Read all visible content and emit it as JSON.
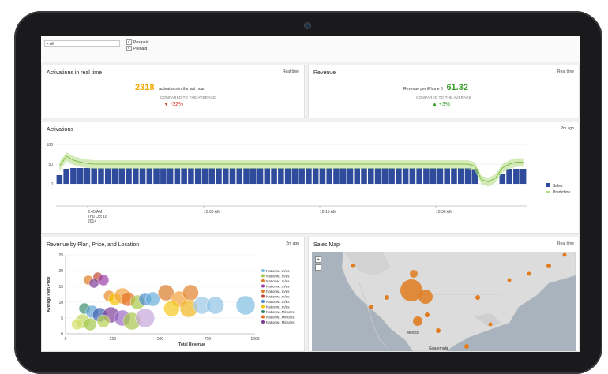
{
  "filters": {
    "select_value": "× All",
    "options": [
      {
        "label": "Postpaid",
        "checked": true
      },
      {
        "label": "Prepaid",
        "checked": true
      }
    ]
  },
  "activations_realtime": {
    "title": "Activations in real time",
    "meta": "Real time",
    "value": "2318",
    "value_label": "activations in the last hour",
    "compare_label": "COMPARED TO THE AVERAGE",
    "delta": "-32%",
    "value_color": "#f0a800",
    "delta_color": "#d9342b"
  },
  "revenue": {
    "title": "Revenue",
    "meta": "Real time",
    "value_label": "Revenue per iPhone 6",
    "value": "61.32",
    "compare_label": "COMPARED TO THE AVERAGE",
    "delta": "+3%",
    "value_color": "#3a9b2c",
    "delta_color": "#3a9b2c"
  },
  "activations_chart": {
    "title": "Activations",
    "meta": "2m ago",
    "legend": [
      "Sales",
      "Prediction"
    ],
    "y_ticks": [
      "100",
      "50",
      "0"
    ],
    "x_ticks": [
      {
        "label": "9:45 AM",
        "sub": "Thu Oct 16",
        "sub2": "2014"
      },
      {
        "label": "10:00 AM"
      },
      {
        "label": "10:15 AM"
      },
      {
        "label": "10:30 AM"
      }
    ]
  },
  "chart_data": [
    {
      "type": "bar",
      "title": "Activations",
      "ylim": [
        0,
        100
      ],
      "series": [
        {
          "name": "Sales",
          "values": [
            22,
            38,
            40,
            40,
            40,
            40,
            40,
            40,
            40,
            40,
            40,
            40,
            40,
            40,
            40,
            40,
            40,
            40,
            40,
            40,
            40,
            40,
            40,
            40,
            40,
            40,
            40,
            40,
            40,
            40,
            40,
            40,
            40,
            40,
            40,
            40,
            40,
            40,
            40,
            40,
            40,
            40,
            40,
            40,
            40,
            40,
            40,
            40,
            40,
            40,
            40,
            40,
            40,
            40,
            40,
            40,
            40,
            40,
            40,
            40,
            38,
            0,
            0,
            0,
            24,
            38,
            38,
            38
          ]
        },
        {
          "name": "Prediction",
          "values": [
            45,
            70,
            60,
            55,
            52,
            50,
            50,
            50,
            50,
            50,
            50,
            50,
            50,
            50,
            50,
            50,
            50,
            50,
            50,
            50,
            50,
            50,
            50,
            50,
            50,
            50,
            50,
            50,
            50,
            50,
            50,
            50,
            50,
            50,
            50,
            50,
            50,
            50,
            50,
            50,
            50,
            50,
            50,
            50,
            50,
            50,
            50,
            50,
            50,
            50,
            50,
            50,
            50,
            50,
            50,
            50,
            50,
            50,
            50,
            50,
            45,
            10,
            5,
            15,
            40,
            50,
            55,
            55
          ]
        }
      ]
    },
    {
      "type": "scatter",
      "title": "Revenue by Plan, Price, and Location",
      "xlabel": "Total Revenue",
      "ylabel": "Average Plan Price",
      "x_ticks": [
        "0",
        "250",
        "500",
        "750",
        "1000"
      ],
      "y_ticks": [
        "25",
        "20",
        "15",
        "10",
        "5",
        "0"
      ],
      "xlim": [
        0,
        1000
      ],
      "ylim": [
        0,
        25
      ],
      "legend": [
        "Nationw...m/es",
        "Nationw...m/es",
        "Nationw...m/es",
        "Nationw...m/es",
        "Nationw...m/es",
        "Nationw...m/es",
        "Nationw...m/es",
        "Nationw...m/es",
        "Nationw...Minutes",
        "Nationw...Minutes",
        "Nationw...Minutes"
      ],
      "series": [
        {
          "name": "",
          "points": [
            [
              120,
              17,
              6,
              "#e07b20"
            ],
            [
              170,
              18,
              6,
              "#c0442b"
            ],
            [
              200,
              17,
              7,
              "#9b3fa8"
            ],
            [
              150,
              16,
              6,
              "#7c3f97"
            ],
            [
              230,
              12,
              7,
              "#e68b25"
            ],
            [
              260,
              11,
              8,
              "#f6c400"
            ],
            [
              300,
              12,
              10,
              "#f1a440"
            ],
            [
              330,
              11,
              9,
              "#e26d1e"
            ],
            [
              380,
              10,
              9,
              "#a9c94a"
            ],
            [
              420,
              11,
              8,
              "#4c8bd3"
            ],
            [
              460,
              11,
              9,
              "#6ab0dc"
            ],
            [
              530,
              13,
              10,
              "#d97a2a"
            ],
            [
              600,
              11,
              10,
              "#f4a13a"
            ],
            [
              660,
              13,
              10,
              "#e3822b"
            ],
            [
              560,
              8,
              10,
              "#f3c91b"
            ],
            [
              650,
              8,
              11,
              "#f0b51e"
            ],
            [
              720,
              9,
              11,
              "#9cc7e6"
            ],
            [
              790,
              9,
              11,
              "#8fc3e6"
            ],
            [
              950,
              9,
              12,
              "#7fbde3"
            ],
            [
              100,
              8,
              7,
              "#3c8c6d"
            ],
            [
              140,
              7,
              8,
              "#5fa3d4"
            ],
            [
              180,
              6,
              9,
              "#3c5fae"
            ],
            [
              240,
              6,
              10,
              "#7c3f97"
            ],
            [
              300,
              5,
              10,
              "#9b6ac4"
            ],
            [
              350,
              4,
              11,
              "#a6c84b"
            ],
            [
              420,
              5,
              12,
              "#c7a6dd"
            ],
            [
              200,
              4,
              8,
              "#b9d353"
            ],
            [
              90,
              4,
              9,
              "#c2d85c"
            ],
            [
              60,
              3,
              7,
              "#d5e06a"
            ],
            [
              130,
              3,
              8,
              "#a0c74a"
            ]
          ]
        }
      ]
    }
  ],
  "scatter_panel": {
    "title": "Revenue by Plan, Price, and Location",
    "meta": "2m ago",
    "legend_colors": [
      "#7fbde3",
      "#a6c84b",
      "#d97a2a",
      "#9b3fa8",
      "#e07b20",
      "#c0442b",
      "#4c8bd3",
      "#f6c400",
      "#3c8c6d",
      "#e26d1e",
      "#7c3f97"
    ]
  },
  "sales_map": {
    "title": "Sales Map",
    "meta": "Real time",
    "zoom_in": "+",
    "zoom_out": "−",
    "city_labels": [
      "Mexico",
      "Guatemala"
    ]
  }
}
